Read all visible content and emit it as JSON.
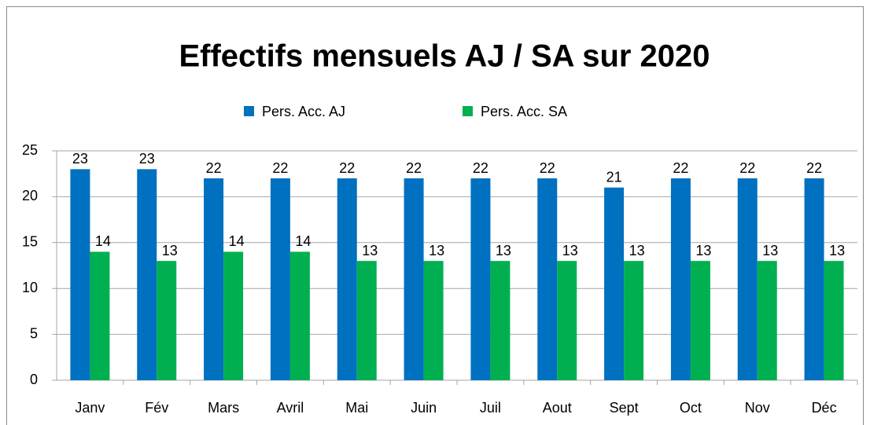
{
  "chart_data": {
    "type": "bar",
    "title": "Effectifs mensuels AJ / SA sur 2020",
    "categories": [
      "Janv",
      "Fév",
      "Mars",
      "Avril",
      "Mai",
      "Juin",
      "Juil",
      "Aout",
      "Sept",
      "Oct",
      "Nov",
      "Déc"
    ],
    "series": [
      {
        "name": "Pers. Acc. AJ",
        "color": "#0070c0",
        "values": [
          23,
          23,
          22,
          22,
          22,
          22,
          22,
          22,
          21,
          22,
          22,
          22
        ]
      },
      {
        "name": "Pers. Acc. SA",
        "color": "#00b050",
        "values": [
          14,
          13,
          14,
          14,
          13,
          13,
          13,
          13,
          13,
          13,
          13,
          13
        ]
      }
    ],
    "ylim": [
      0,
      25
    ],
    "yticks": [
      0,
      5,
      10,
      15,
      20,
      25
    ],
    "grid": true,
    "legend": "top"
  }
}
